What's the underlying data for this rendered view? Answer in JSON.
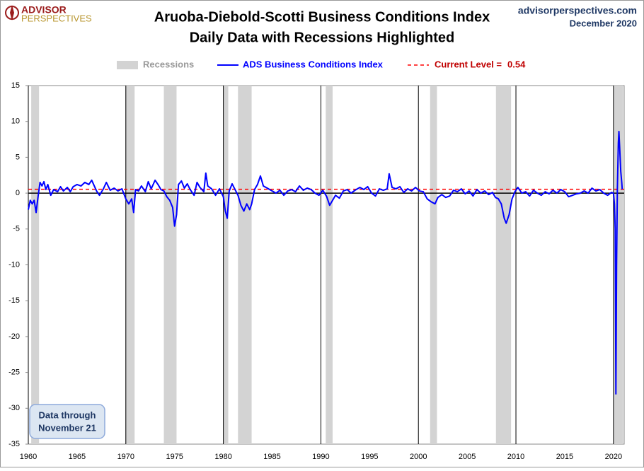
{
  "header": {
    "logo_top": "ADVISOR",
    "logo_bottom": "PERSPECTIVES",
    "site": "advisorperspectives.com",
    "date": "December 2020"
  },
  "note": [
    "Data through",
    "November 21"
  ],
  "chart_data": {
    "type": "line",
    "title": "Aruoba-Diebold-Scotti Business Conditions Index",
    "subtitle": "Daily Data with Recessions Highlighted",
    "x": [
      1960.0,
      1960.2,
      1960.4,
      1960.6,
      1960.8,
      1961.0,
      1961.2,
      1961.4,
      1961.6,
      1961.8,
      1962.0,
      1962.3,
      1962.6,
      1963.0,
      1963.3,
      1963.6,
      1964.0,
      1964.3,
      1964.6,
      1965.0,
      1965.4,
      1965.8,
      1966.2,
      1966.5,
      1967.0,
      1967.3,
      1967.7,
      1968.0,
      1968.4,
      1968.8,
      1969.2,
      1969.6,
      1970.0,
      1970.3,
      1970.6,
      1970.8,
      1971.0,
      1971.3,
      1971.6,
      1972.0,
      1972.3,
      1972.6,
      1973.0,
      1973.3,
      1973.6,
      1973.9,
      1974.2,
      1974.5,
      1974.8,
      1975.0,
      1975.2,
      1975.4,
      1975.7,
      1976.0,
      1976.3,
      1976.6,
      1977.0,
      1977.3,
      1977.6,
      1978.0,
      1978.2,
      1978.4,
      1978.8,
      1979.2,
      1979.6,
      1980.0,
      1980.2,
      1980.4,
      1980.6,
      1980.9,
      1981.2,
      1981.5,
      1981.8,
      1982.1,
      1982.4,
      1982.7,
      1982.9,
      1983.2,
      1983.5,
      1983.8,
      1984.1,
      1984.5,
      1985.0,
      1985.4,
      1985.8,
      1986.2,
      1986.6,
      1987.0,
      1987.4,
      1987.8,
      1988.2,
      1988.6,
      1989.0,
      1989.4,
      1989.8,
      1990.2,
      1990.6,
      1990.9,
      1991.2,
      1991.5,
      1991.9,
      1992.3,
      1992.7,
      1993.1,
      1993.5,
      1994.0,
      1994.4,
      1994.8,
      1995.2,
      1995.6,
      1996.0,
      1996.4,
      1996.8,
      1997.0,
      1997.3,
      1997.7,
      1998.1,
      1998.5,
      1998.9,
      1999.3,
      1999.7,
      2000.1,
      2000.5,
      2000.9,
      2001.3,
      2001.7,
      2002.0,
      2002.4,
      2002.8,
      2003.2,
      2003.6,
      2004.0,
      2004.4,
      2004.8,
      2005.2,
      2005.6,
      2006.0,
      2006.4,
      2006.8,
      2007.2,
      2007.6,
      2007.9,
      2008.2,
      2008.5,
      2008.8,
      2009.0,
      2009.3,
      2009.6,
      2009.9,
      2010.2,
      2010.6,
      2011.0,
      2011.4,
      2011.8,
      2012.2,
      2012.6,
      2013.0,
      2013.4,
      2013.8,
      2014.2,
      2014.6,
      2015.0,
      2015.4,
      2015.8,
      2016.2,
      2016.6,
      2017.0,
      2017.4,
      2017.8,
      2018.2,
      2018.6,
      2019.0,
      2019.4,
      2019.8,
      2020.0,
      2020.1,
      2020.18,
      2020.25,
      2020.32,
      2020.4,
      2020.5,
      2020.56,
      2020.65,
      2020.75,
      2020.85,
      2020.9
    ],
    "series": [
      {
        "name": "ADS Business Conditions Index",
        "color": "#0000ff",
        "values": [
          -2.3,
          -1.0,
          -1.5,
          -1.0,
          -2.7,
          -0.5,
          1.5,
          1.0,
          1.6,
          0.5,
          1.2,
          -0.3,
          0.5,
          0.2,
          0.9,
          0.3,
          0.8,
          0.2,
          0.9,
          1.2,
          1.0,
          1.5,
          1.2,
          1.8,
          0.3,
          -0.3,
          0.6,
          1.5,
          0.4,
          0.7,
          0.3,
          0.6,
          -0.8,
          -1.5,
          -0.8,
          -2.7,
          0.5,
          0.3,
          1.0,
          0.2,
          1.6,
          0.6,
          1.8,
          1.2,
          0.5,
          0.3,
          -0.5,
          -1.0,
          -2.0,
          -4.6,
          -3.0,
          1.2,
          1.7,
          0.7,
          1.3,
          0.5,
          -0.3,
          1.5,
          0.8,
          0.2,
          2.8,
          1.0,
          0.6,
          -0.3,
          0.6,
          -0.5,
          -2.5,
          -3.5,
          0.3,
          1.3,
          0.5,
          -0.3,
          -1.7,
          -2.5,
          -1.5,
          -2.3,
          -1.5,
          0.5,
          1.2,
          2.4,
          1.0,
          0.7,
          0.3,
          0.0,
          0.4,
          -0.3,
          0.3,
          0.5,
          0.2,
          1.0,
          0.4,
          0.7,
          0.5,
          0.0,
          -0.3,
          0.4,
          -0.5,
          -1.7,
          -1.0,
          -0.3,
          -0.7,
          0.3,
          0.5,
          0.0,
          0.4,
          0.8,
          0.5,
          0.9,
          0.0,
          -0.4,
          0.6,
          0.4,
          0.6,
          2.7,
          0.8,
          0.6,
          0.9,
          0.1,
          0.6,
          0.3,
          0.8,
          0.3,
          0.2,
          -0.8,
          -1.2,
          -1.5,
          -0.6,
          -0.2,
          -0.6,
          -0.4,
          0.4,
          0.2,
          0.6,
          -0.1,
          0.3,
          -0.4,
          0.5,
          0.0,
          0.3,
          -0.2,
          0.1,
          -0.6,
          -0.8,
          -1.5,
          -3.5,
          -4.2,
          -3.0,
          -0.8,
          0.2,
          0.8,
          0.0,
          0.2,
          -0.4,
          0.4,
          0.0,
          -0.3,
          0.2,
          -0.1,
          0.4,
          0.0,
          0.5,
          0.2,
          -0.5,
          -0.3,
          -0.1,
          0.0,
          0.3,
          0.0,
          0.7,
          0.3,
          0.5,
          0.0,
          -0.3,
          0.1,
          0.0,
          -1.5,
          -5.0,
          -28.0,
          -10.0,
          0.5,
          7.0,
          8.6,
          6.0,
          3.0,
          1.5,
          0.54
        ]
      }
    ],
    "recessions": {
      "name": "Recessions",
      "color": "#d3d3d3",
      "spans": [
        [
          1960.3,
          1961.1
        ],
        [
          1969.95,
          1970.9
        ],
        [
          1973.9,
          1975.2
        ],
        [
          1980.0,
          1980.5
        ],
        [
          1981.5,
          1982.9
        ],
        [
          1990.5,
          1991.2
        ],
        [
          2001.2,
          2001.9
        ],
        [
          2007.95,
          2009.5
        ],
        [
          2020.0,
          2021.0
        ]
      ]
    },
    "reference_line": {
      "name": "Current Level =",
      "value": 0.54,
      "color": "#ff0000"
    },
    "xlim": [
      1960,
      2021.1
    ],
    "ylim": [
      -35,
      15
    ],
    "xticks": [
      1960,
      1965,
      1970,
      1975,
      1980,
      1985,
      1990,
      1995,
      2000,
      2005,
      2010,
      2015,
      2020
    ],
    "yticks": [
      -35,
      -30,
      -25,
      -20,
      -15,
      -10,
      -5,
      0,
      5,
      10,
      15
    ]
  }
}
